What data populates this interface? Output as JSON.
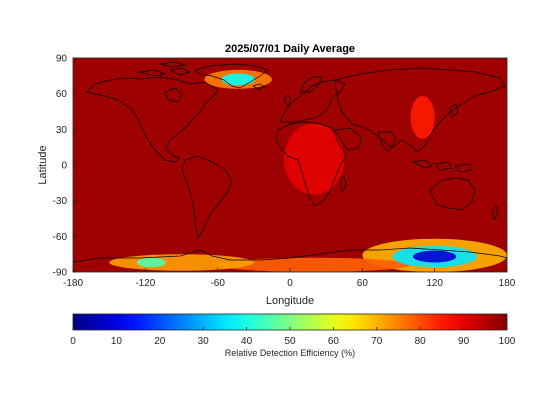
{
  "chart_data": {
    "type": "heatmap",
    "title": "2025/07/01 Daily Average",
    "xlabel": "Longitude",
    "ylabel": "Latitude",
    "xlim": [
      -180,
      180
    ],
    "ylim": [
      -90,
      90
    ],
    "xticks": [
      -180,
      -120,
      -60,
      0,
      60,
      120,
      180
    ],
    "yticks": [
      90,
      60,
      30,
      0,
      -30,
      -60,
      -90
    ],
    "colormap": "jet",
    "colorbar": {
      "label": "Relative Detection Efficiency (%)",
      "range": [
        0,
        100
      ],
      "ticks": [
        0,
        10,
        20,
        30,
        40,
        50,
        60,
        70,
        80,
        90,
        100
      ],
      "placement": "bottom"
    },
    "background_value": 97,
    "features": [
      {
        "lon": -43,
        "lat": 72,
        "rx": 14,
        "ry": 5,
        "value": 38
      },
      {
        "lon": -43,
        "lat": 72,
        "rx": 28,
        "ry": 8,
        "value": 75
      },
      {
        "lon": 110,
        "lat": 40,
        "rx": 10,
        "ry": 18,
        "value": 85
      },
      {
        "lon": 20,
        "lat": 5,
        "rx": 25,
        "ry": 30,
        "value": 90
      },
      {
        "lon": 120,
        "lat": -77,
        "rx": 18,
        "ry": 5,
        "value": 8
      },
      {
        "lon": 120,
        "lat": -77,
        "rx": 35,
        "ry": 9,
        "value": 35
      },
      {
        "lon": 120,
        "lat": -76,
        "rx": 60,
        "ry": 14,
        "value": 70
      },
      {
        "lon": -115,
        "lat": -82,
        "rx": 12,
        "ry": 4,
        "value": 45
      },
      {
        "lon": -90,
        "lat": -82,
        "rx": 60,
        "ry": 7,
        "value": 72
      },
      {
        "lon": 20,
        "lat": -84,
        "rx": 80,
        "ry": 6,
        "value": 78
      }
    ]
  }
}
